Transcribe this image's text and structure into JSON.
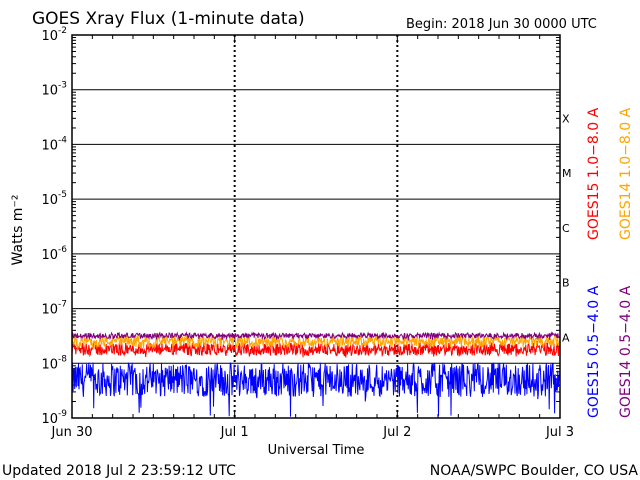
{
  "header": {
    "title": "GOES Xray Flux (1-minute data)",
    "begin": "Begin:  2018 Jun 30 0000 UTC"
  },
  "footer": {
    "updated": "Updated 2018 Jul  2 23:59:12 UTC",
    "credit": "NOAA/SWPC Boulder, CO USA"
  },
  "chart_data": {
    "type": "line",
    "title": "GOES Xray Flux (1-minute data)",
    "xlabel": "Universal Time",
    "ylabel": "Watts m⁻²",
    "yscale": "log",
    "ylim": [
      1e-09,
      0.01
    ],
    "x_range_days": [
      0,
      3
    ],
    "x_ticks": [
      {
        "day": 0,
        "label": "Jun 30"
      },
      {
        "day": 1,
        "label": "Jul 1"
      },
      {
        "day": 2,
        "label": "Jul 2"
      },
      {
        "day": 3,
        "label": "Jul 3"
      }
    ],
    "y_ticks": [
      {
        "exp": -9,
        "label": "10",
        "sup": "-9"
      },
      {
        "exp": -8,
        "label": "10",
        "sup": "-8"
      },
      {
        "exp": -7,
        "label": "10",
        "sup": "-7"
      },
      {
        "exp": -6,
        "label": "10",
        "sup": "-6"
      },
      {
        "exp": -5,
        "label": "10",
        "sup": "-5"
      },
      {
        "exp": -4,
        "label": "10",
        "sup": "-4"
      },
      {
        "exp": -3,
        "label": "10",
        "sup": "-3"
      },
      {
        "exp": -2,
        "label": "10",
        "sup": "-2"
      }
    ],
    "flare_classes": [
      {
        "label": "A",
        "exp": -8
      },
      {
        "label": "B",
        "exp": -7
      },
      {
        "label": "C",
        "exp": -6
      },
      {
        "label": "M",
        "exp": -5
      },
      {
        "label": "X",
        "exp": -4
      }
    ],
    "grid": true,
    "legend_position": "right, vertical",
    "series": [
      {
        "name": "GOES15 1.0−8.0 A",
        "color": "#ff0000",
        "level_w_m2": 1.8e-08,
        "range_w_m2": [
          1.2e-08,
          2.6e-08
        ]
      },
      {
        "name": "GOES14 1.0−8.0 A",
        "color": "#ffa500",
        "level_w_m2": 2.5e-08,
        "range_w_m2": [
          1.8e-08,
          3.6e-08
        ]
      },
      {
        "name": "GOES15 0.5−4.0 A",
        "color": "#0000ff",
        "level_w_m2": 5e-09,
        "range_w_m2": [
          1e-09,
          8e-09
        ]
      },
      {
        "name": "GOES14 0.5−4.0 A",
        "color": "#800080",
        "level_w_m2": 3.2e-08,
        "range_w_m2": [
          2.6e-08,
          3.6e-08
        ]
      }
    ]
  }
}
